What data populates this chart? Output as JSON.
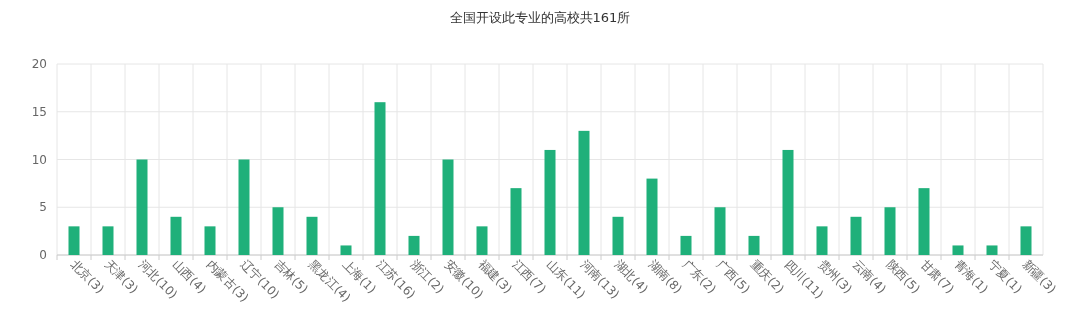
{
  "chart_data": {
    "type": "bar",
    "title": "全国开设此专业的高校共161所",
    "categories": [
      "北京(3)",
      "天津(3)",
      "河北(10)",
      "山西(4)",
      "内蒙古(3)",
      "辽宁(10)",
      "吉林(5)",
      "黑龙江(4)",
      "上海(1)",
      "江苏(16)",
      "浙江(2)",
      "安徽(10)",
      "福建(3)",
      "江西(7)",
      "山东(11)",
      "河南(13)",
      "湖北(4)",
      "湖南(8)",
      "广东(2)",
      "广西(5)",
      "重庆(2)",
      "四川(11)",
      "贵州(3)",
      "云南(4)",
      "陕西(5)",
      "甘肃(7)",
      "青海(1)",
      "宁夏(1)",
      "新疆(3)"
    ],
    "values": [
      3,
      3,
      10,
      4,
      3,
      10,
      5,
      4,
      1,
      16,
      2,
      10,
      3,
      7,
      11,
      13,
      4,
      8,
      2,
      5,
      2,
      11,
      3,
      4,
      5,
      7,
      1,
      1,
      3
    ],
    "color": "#1fb07a",
    "ylim": [
      0,
      20
    ],
    "yticks": [
      0,
      5,
      10,
      15,
      20
    ],
    "grid": true
  }
}
